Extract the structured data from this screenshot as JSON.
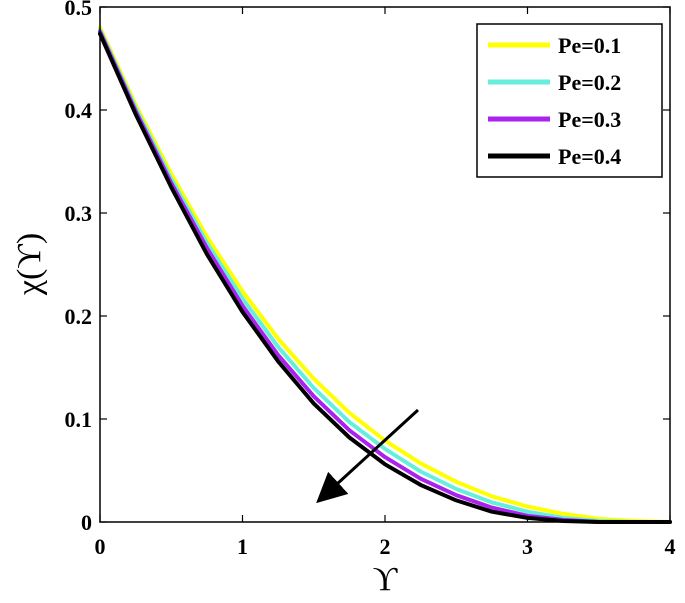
{
  "chart_data": {
    "type": "line",
    "title": "",
    "xlabel": "ϒ",
    "ylabel": "χ(ϒ)",
    "xlim": [
      0,
      4
    ],
    "ylim": [
      0,
      0.5
    ],
    "x_ticks": [
      "0",
      "1",
      "2",
      "3",
      "4"
    ],
    "y_ticks": [
      "0",
      "0.1",
      "0.2",
      "0.3",
      "0.4",
      "0.5"
    ],
    "grid": false,
    "legend_position": "top-right",
    "annotation": "arrow pointing toward decreasing curves as Pe increases",
    "x": [
      0,
      0.25,
      0.5,
      0.75,
      1.0,
      1.25,
      1.5,
      1.75,
      2.0,
      2.25,
      2.5,
      2.75,
      3.0,
      3.25,
      3.5,
      3.75,
      4.0
    ],
    "series": [
      {
        "name": "Pe=0.1",
        "color": "#ffff00",
        "values": [
          0.48,
          0.405,
          0.338,
          0.277,
          0.224,
          0.178,
          0.139,
          0.106,
          0.079,
          0.057,
          0.039,
          0.025,
          0.015,
          0.008,
          0.003,
          0.001,
          0.0
        ]
      },
      {
        "name": "Pe=0.2",
        "color": "#66eedd",
        "values": [
          0.478,
          0.402,
          0.333,
          0.271,
          0.217,
          0.17,
          0.13,
          0.097,
          0.071,
          0.049,
          0.032,
          0.019,
          0.01,
          0.004,
          0.001,
          0.0,
          0.0
        ]
      },
      {
        "name": "Pe=0.3",
        "color": "#aa22ee",
        "values": [
          0.476,
          0.399,
          0.329,
          0.266,
          0.21,
          0.162,
          0.122,
          0.089,
          0.063,
          0.042,
          0.026,
          0.014,
          0.006,
          0.002,
          0.0,
          0.0,
          0.0
        ]
      },
      {
        "name": "Pe=0.4",
        "color": "#000000",
        "values": [
          0.474,
          0.396,
          0.325,
          0.26,
          0.204,
          0.156,
          0.115,
          0.082,
          0.056,
          0.036,
          0.021,
          0.01,
          0.004,
          0.001,
          0.0,
          0.0,
          0.0
        ]
      }
    ]
  }
}
